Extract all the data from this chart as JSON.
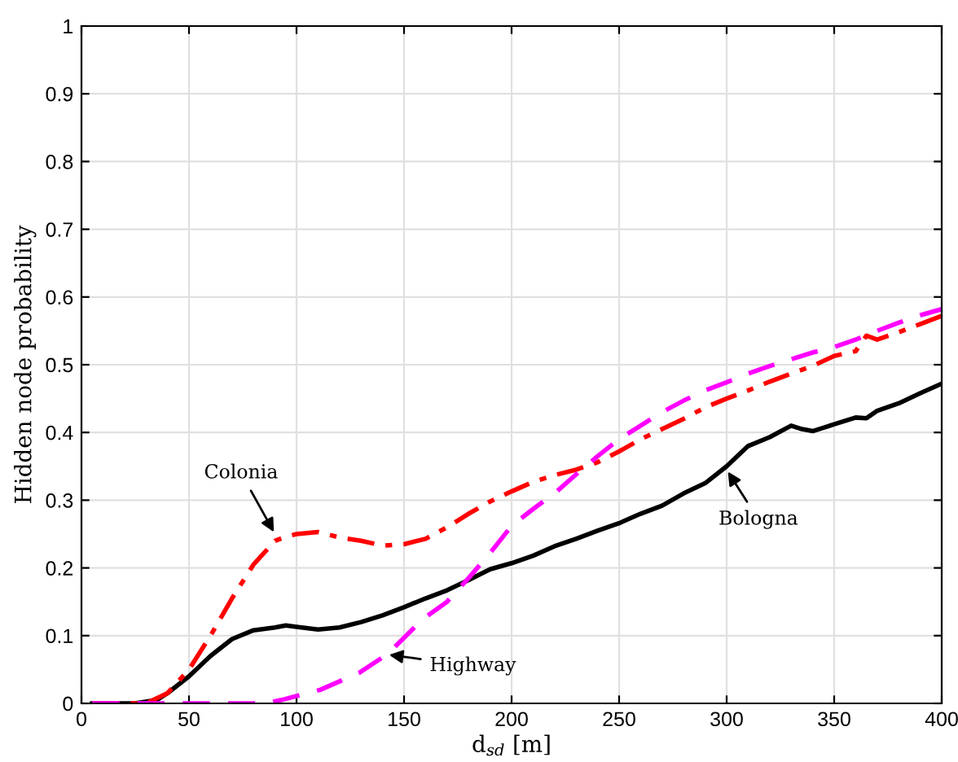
{
  "chart_data": {
    "type": "line",
    "xlabel": "d$_{sd}$ [m]",
    "ylabel": "Hidden node probability",
    "xlim": [
      0,
      400
    ],
    "ylim": [
      0,
      1
    ],
    "xticks": [
      0,
      50,
      100,
      150,
      200,
      250,
      300,
      350,
      400
    ],
    "yticks": [
      0,
      0.1,
      0.2,
      0.3,
      0.4,
      0.5,
      0.6,
      0.7,
      0.8,
      0.9,
      1
    ],
    "grid": true,
    "legend": false,
    "marker": "none",
    "series": [
      {
        "color": "#000000",
        "line_style": "solid",
        "x": [
          5,
          25,
          35,
          40,
          50,
          60,
          70,
          80,
          90,
          95,
          100,
          110,
          120,
          130,
          140,
          150,
          160,
          170,
          180,
          190,
          200,
          210,
          220,
          230,
          240,
          250,
          260,
          270,
          280,
          290,
          300,
          310,
          320,
          330,
          335,
          340,
          350,
          360,
          365,
          370,
          380,
          390,
          400
        ],
        "values": [
          0,
          0,
          0.005,
          0.015,
          0.04,
          0.07,
          0.095,
          0.108,
          0.112,
          0.115,
          0.113,
          0.109,
          0.112,
          0.12,
          0.13,
          0.142,
          0.155,
          0.167,
          0.182,
          0.198,
          0.207,
          0.218,
          0.232,
          0.243,
          0.255,
          0.266,
          0.28,
          0.292,
          0.31,
          0.325,
          0.35,
          0.38,
          0.393,
          0.41,
          0.405,
          0.402,
          0.412,
          0.422,
          0.421,
          0.432,
          0.443,
          0.458,
          0.472
        ]
      },
      {
        "color": "#ff0000",
        "line_style": "dashdot",
        "x": [
          5,
          30,
          40,
          50,
          60,
          70,
          80,
          90,
          95,
          100,
          110,
          120,
          130,
          140,
          150,
          160,
          170,
          180,
          190,
          200,
          210,
          220,
          230,
          240,
          250,
          260,
          270,
          280,
          290,
          300,
          310,
          320,
          330,
          340,
          350,
          360,
          365,
          370,
          380,
          390,
          400
        ],
        "values": [
          0,
          0,
          0.015,
          0.05,
          0.1,
          0.155,
          0.205,
          0.24,
          0.246,
          0.25,
          0.253,
          0.245,
          0.24,
          0.233,
          0.235,
          0.243,
          0.26,
          0.28,
          0.298,
          0.313,
          0.327,
          0.337,
          0.345,
          0.356,
          0.372,
          0.39,
          0.405,
          0.42,
          0.437,
          0.45,
          0.462,
          0.475,
          0.487,
          0.498,
          0.513,
          0.52,
          0.543,
          0.537,
          0.548,
          0.56,
          0.572
        ]
      },
      {
        "color": "#ff00ff",
        "line_style": "dashed",
        "x": [
          5,
          85,
          93,
          111,
          129,
          142,
          159,
          170,
          180,
          190,
          200,
          210,
          220,
          230,
          240,
          250,
          260,
          270,
          280,
          290,
          300,
          310,
          320,
          330,
          340,
          350,
          360,
          370,
          380,
          390,
          400
        ],
        "values": [
          0,
          0,
          0.005,
          0.02,
          0.045,
          0.072,
          0.125,
          0.15,
          0.185,
          0.222,
          0.262,
          0.287,
          0.31,
          0.338,
          0.365,
          0.39,
          0.41,
          0.43,
          0.447,
          0.462,
          0.474,
          0.487,
          0.498,
          0.508,
          0.518,
          0.526,
          0.537,
          0.55,
          0.562,
          0.573,
          0.582
        ]
      }
    ],
    "annotations": [
      {
        "text": "Colonia",
        "x": 90,
        "y": 0.25
      },
      {
        "text": "Highway",
        "x": 142,
        "y": 0.072
      },
      {
        "text": "Bologna",
        "x": 300,
        "y": 0.345
      }
    ]
  }
}
